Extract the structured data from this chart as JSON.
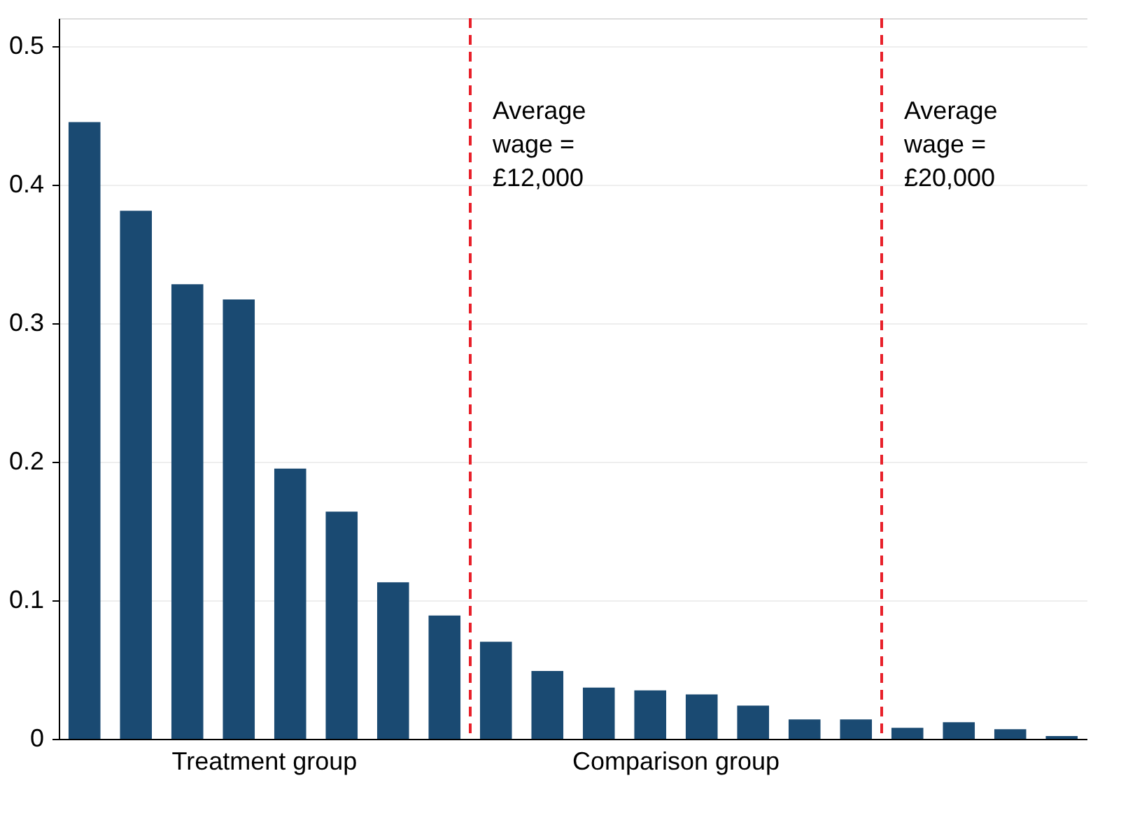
{
  "chart_data": {
    "type": "bar",
    "categories": [
      null,
      null,
      null,
      null,
      null,
      null,
      null,
      null,
      null,
      null,
      null,
      null,
      null,
      null,
      null,
      null,
      null,
      null,
      null,
      null
    ],
    "values": [
      0.445,
      0.381,
      0.328,
      0.317,
      0.195,
      0.164,
      0.113,
      0.089,
      0.07,
      0.049,
      0.037,
      0.035,
      0.032,
      0.024,
      0.014,
      0.014,
      0.008,
      0.012,
      0.007,
      0.002
    ],
    "color": "#1a4a72",
    "ylim": [
      0,
      0.52
    ],
    "yticks": [
      0,
      0.1,
      0.2,
      0.3,
      0.4,
      0.5
    ],
    "grid": "y",
    "tick_labels": "y",
    "annotations": [
      "Average wage = £12,000",
      "Average wage = £20,000",
      "Treatment group",
      "Comparison  group"
    ]
  }
}
